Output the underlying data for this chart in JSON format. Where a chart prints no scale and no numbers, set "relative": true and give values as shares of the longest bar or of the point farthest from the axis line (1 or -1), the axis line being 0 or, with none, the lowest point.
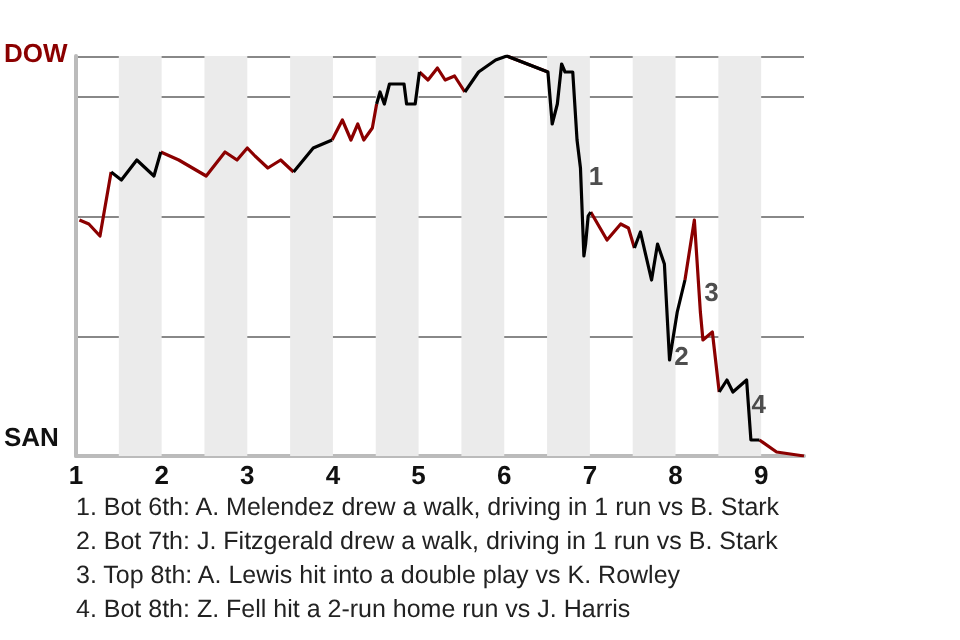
{
  "chart_data": {
    "type": "line",
    "x": [
      1.04,
      1.15,
      1.28,
      1.41,
      1.53,
      1.71,
      1.91,
      1.99,
      2.2,
      2.52,
      2.74,
      2.88,
      3.0,
      3.09,
      3.24,
      3.39,
      3.54,
      3.77,
      3.99,
      4.11,
      4.21,
      4.29,
      4.36,
      4.46,
      4.51,
      4.55,
      4.6,
      4.66,
      4.83,
      4.86,
      4.96,
      5.01,
      5.11,
      5.22,
      5.31,
      5.42,
      5.54,
      5.7,
      5.9,
      6.03,
      6.51,
      6.56,
      6.62,
      6.67,
      6.71,
      6.8,
      6.85,
      6.89,
      6.93,
      6.95,
      6.98,
      7.01,
      7.2,
      7.36,
      7.45,
      7.52,
      7.59,
      7.72,
      7.79,
      7.87,
      7.93,
      8.02,
      8.11,
      8.22,
      8.29,
      8.32,
      8.43,
      8.51,
      8.6,
      8.67,
      8.83,
      8.88,
      8.98,
      9.18,
      9.5
    ],
    "relative": true,
    "series": [
      {
        "color": "#8b0000",
        "values": [
          0.59,
          0.58,
          0.55,
          0.71,
          null,
          null,
          null,
          0.76,
          0.74,
          0.7,
          0.76,
          0.74,
          0.77,
          0.75,
          0.72,
          0.74,
          0.71,
          null,
          0.79,
          0.84,
          0.79,
          0.83,
          0.79,
          0.82,
          0.88,
          null,
          null,
          null,
          null,
          null,
          null,
          0.96,
          0.94,
          0.97,
          0.94,
          0.95,
          0.91,
          null,
          null,
          1,
          0.96,
          null,
          null,
          null,
          null,
          null,
          null,
          null,
          null,
          null,
          null,
          0.61,
          0.54,
          0.58,
          0.57,
          0.52,
          null,
          null,
          null,
          null,
          null,
          null,
          0.44,
          0.59,
          0.36,
          0.29,
          0.31,
          0.16,
          null,
          null,
          null,
          null,
          0.04,
          0.01,
          0
        ]
      },
      {
        "color": "#000000",
        "values": [
          null,
          null,
          null,
          0.71,
          0.69,
          0.74,
          0.7,
          0.76,
          null,
          null,
          null,
          null,
          null,
          null,
          null,
          null,
          0.71,
          0.77,
          0.79,
          null,
          null,
          null,
          null,
          null,
          0.88,
          0.91,
          0.88,
          0.93,
          0.93,
          0.88,
          0.88,
          0.96,
          null,
          null,
          null,
          null,
          0.91,
          0.96,
          0.99,
          1,
          0.96,
          0.83,
          0.88,
          0.98,
          0.96,
          0.96,
          0.79,
          0.72,
          0.5,
          0.53,
          0.6,
          0.61,
          null,
          null,
          null,
          0.52,
          0.56,
          0.44,
          0.53,
          0.48,
          0.24,
          0.36,
          0.44,
          null,
          null,
          null,
          null,
          0.16,
          0.19,
          0.16,
          0.19,
          0.04,
          0.04,
          null,
          null
        ]
      }
    ],
    "xlim": [
      1,
      9.5
    ],
    "xticks": [
      1,
      2,
      3,
      4,
      5,
      6,
      7,
      8,
      9
    ],
    "grid": "y",
    "bands": [
      {
        "axis": "x",
        "from": 1.5,
        "to": 2,
        "color": "#ebebeb"
      },
      {
        "axis": "x",
        "from": 2.5,
        "to": 3,
        "color": "#ebebeb"
      },
      {
        "axis": "x",
        "from": 3.5,
        "to": 4,
        "color": "#ebebeb"
      },
      {
        "axis": "x",
        "from": 4.5,
        "to": 5,
        "color": "#ebebeb"
      },
      {
        "axis": "x",
        "from": 5.5,
        "to": 6,
        "color": "#ebebeb"
      },
      {
        "axis": "x",
        "from": 6.5,
        "to": 7,
        "color": "#ebebeb"
      },
      {
        "axis": "x",
        "from": 7.5,
        "to": 8,
        "color": "#ebebeb"
      },
      {
        "axis": "x",
        "from": 8.5,
        "to": 9,
        "color": "#ebebeb"
      }
    ],
    "annotations": [
      "DOW",
      "SAN",
      {
        "text": "1",
        "x": 7.07,
        "y": 0.7
      },
      {
        "text": "2",
        "x": 8.07,
        "y": 0.25
      },
      {
        "text": "3",
        "x": 8.42,
        "y": 0.41
      },
      {
        "text": "4",
        "x": 8.97,
        "y": 0.13
      },
      "1. Bot 6th: A. Melendez drew a walk, driving in 1 run vs B. Stark",
      "2. Bot 7th: J. Fitzgerald drew a walk, driving in 1 run vs B. Stark",
      "3. Top 8th: A. Lewis hit into a double play vs K. Rowley",
      "4. Bot 8th: Z. Fell hit a 2-run home run vs J. Harris"
    ]
  }
}
